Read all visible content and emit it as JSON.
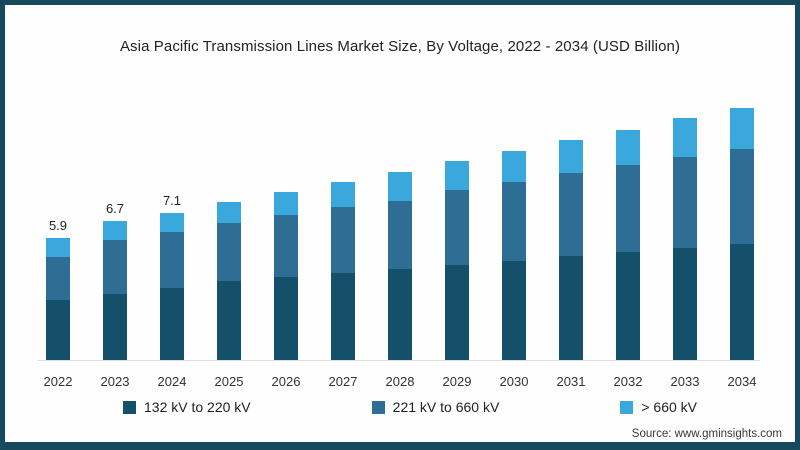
{
  "title": "Asia Pacific Transmission Lines Market Size, By Voltage, 2022 - 2034 (USD Billion)",
  "source": "Source: www.gminsights.com",
  "colors": {
    "frame_border": "#17495c",
    "axis_line": "#dddddd",
    "series_dark": "#15506b",
    "series_mid": "#2f6e94",
    "series_light": "#3ba8dd"
  },
  "chart_data": {
    "type": "bar",
    "stacked": true,
    "title": "Asia Pacific Transmission Lines Market Size, By Voltage, 2022 - 2034 (USD Billion)",
    "xlabel": "",
    "ylabel": "",
    "ylim": [
      0,
      12.6
    ],
    "grid": false,
    "y_axis_hidden": true,
    "legend_position": "bottom",
    "categories": [
      "2022",
      "2023",
      "2024",
      "2025",
      "2026",
      "2027",
      "2028",
      "2029",
      "2030",
      "2031",
      "2032",
      "2033",
      "2034"
    ],
    "series": [
      {
        "name": "132 kV to 220 kV",
        "color": "#15506b",
        "values": [
          2.9,
          3.2,
          3.5,
          3.8,
          4.0,
          4.2,
          4.4,
          4.6,
          4.8,
          5.0,
          5.2,
          5.4,
          5.6
        ]
      },
      {
        "name": "221 kV to 660 kV",
        "color": "#2f6e94",
        "values": [
          2.1,
          2.6,
          2.7,
          2.8,
          3.0,
          3.2,
          3.3,
          3.6,
          3.8,
          4.0,
          4.2,
          4.4,
          4.6
        ]
      },
      {
        "name": "> 660 kV",
        "color": "#3ba8dd",
        "values": [
          0.9,
          0.9,
          0.9,
          1.0,
          1.1,
          1.2,
          1.4,
          1.4,
          1.5,
          1.6,
          1.7,
          1.9,
          2.0
        ]
      }
    ],
    "totals": [
      5.9,
      6.7,
      7.1,
      7.6,
      8.1,
      8.6,
      9.1,
      9.6,
      10.1,
      10.6,
      11.1,
      11.7,
      12.2
    ],
    "bar_labels": [
      "5.9",
      "6.7",
      "7.1",
      "",
      "",
      "",
      "",
      "",
      "",
      "",
      "",
      "",
      ""
    ]
  },
  "legend": {
    "items": [
      {
        "label": "132 kV to 220 kV"
      },
      {
        "label": "221 kV to 660 kV"
      },
      {
        "label": "> 660 kV"
      }
    ]
  }
}
